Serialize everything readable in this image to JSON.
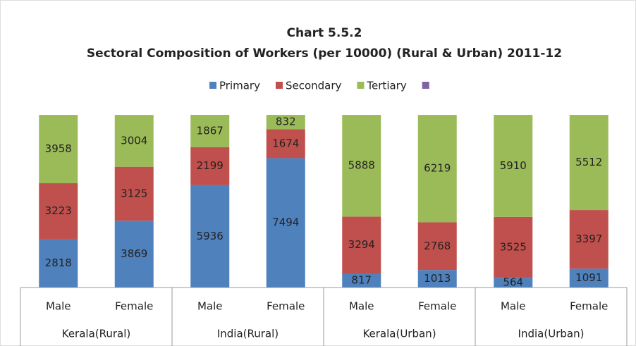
{
  "chart_data": {
    "type": "stacked_bar",
    "title": "Chart 5.5.2",
    "subtitle": "Sectoral Composition of Workers (per 10000) (Rural & Urban) 2011-12",
    "categories": [
      "Male",
      "Female",
      "Male",
      "Female",
      "Male",
      "Female",
      "Male",
      "Female"
    ],
    "groups": [
      "Kerala(Rural)",
      "India(Rural)",
      "Kerala(Urban)",
      "India(Urban)"
    ],
    "series": [
      {
        "name": "Primary",
        "color": "#4f81bd",
        "values": [
          2818,
          3869,
          5936,
          7494,
          817,
          1013,
          564,
          1091
        ]
      },
      {
        "name": "Secondary",
        "color": "#c0504d",
        "values": [
          3223,
          3125,
          2199,
          1674,
          3294,
          2768,
          3525,
          3397
        ]
      },
      {
        "name": "Tertiary",
        "color": "#9bbb59",
        "values": [
          3958,
          3004,
          1867,
          832,
          5888,
          6219,
          5910,
          5512
        ]
      },
      {
        "name": null,
        "color": "#8064a2",
        "values": [
          null,
          null,
          null,
          null,
          null,
          null,
          null,
          null
        ]
      }
    ],
    "legend": "top"
  }
}
